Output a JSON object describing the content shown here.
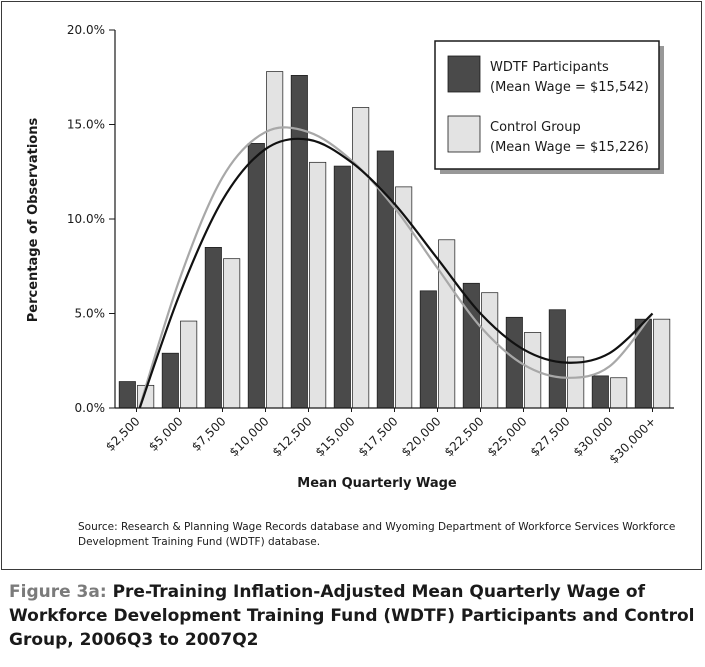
{
  "chart_data": {
    "type": "bar",
    "xlabel": "Mean Quarterly Wage",
    "ylabel": "Percentage of Observations",
    "ylim": [
      0,
      20
    ],
    "y_ticks": [
      "0.0%",
      "5.0%",
      "10.0%",
      "15.0%",
      "20.0%"
    ],
    "categories": [
      "$2,500",
      "$5,000",
      "$7,500",
      "$10,000",
      "$12,500",
      "$15,000",
      "$17,500",
      "$20,000",
      "$22,500",
      "$25,000",
      "$27,500",
      "$30,000",
      "$30,000+"
    ],
    "series": [
      {
        "name": "WDTF Participants",
        "legend_line2": "(Mean Wage = $15,542)",
        "color": "#4a4a4a",
        "values": [
          1.4,
          2.9,
          8.5,
          14.0,
          17.6,
          12.8,
          13.6,
          6.2,
          6.6,
          4.8,
          5.2,
          1.7,
          4.7
        ],
        "trend": [
          -0.5,
          6.0,
          11.0,
          13.7,
          14.2,
          13.0,
          10.8,
          7.9,
          5.0,
          3.1,
          2.4,
          2.9,
          5.0
        ]
      },
      {
        "name": "Control Group",
        "legend_line2": "(Mean Wage = $15,226)",
        "color": "#e3e3e3",
        "values": [
          1.2,
          4.6,
          7.9,
          17.8,
          13.0,
          15.9,
          11.7,
          8.9,
          6.1,
          4.0,
          2.7,
          1.6,
          4.7
        ],
        "trend": [
          -0.5,
          6.8,
          12.2,
          14.6,
          14.6,
          13.1,
          10.6,
          7.4,
          4.3,
          2.3,
          1.6,
          2.2,
          5.0
        ]
      }
    ],
    "grid": false,
    "legend_position": "top-right"
  },
  "source_note": "Source: Research & Planning Wage Records database and Wyoming Department of Workforce Services Workforce Development Training Fund (WDTF) database.",
  "caption": {
    "label": "Figure 3a:",
    "text": "Pre-Training Inflation-Adjusted Mean Quarterly Wage of Workforce Development Training Fund (WDTF) Participants and Control Group, 2006Q3 to 2007Q2"
  }
}
